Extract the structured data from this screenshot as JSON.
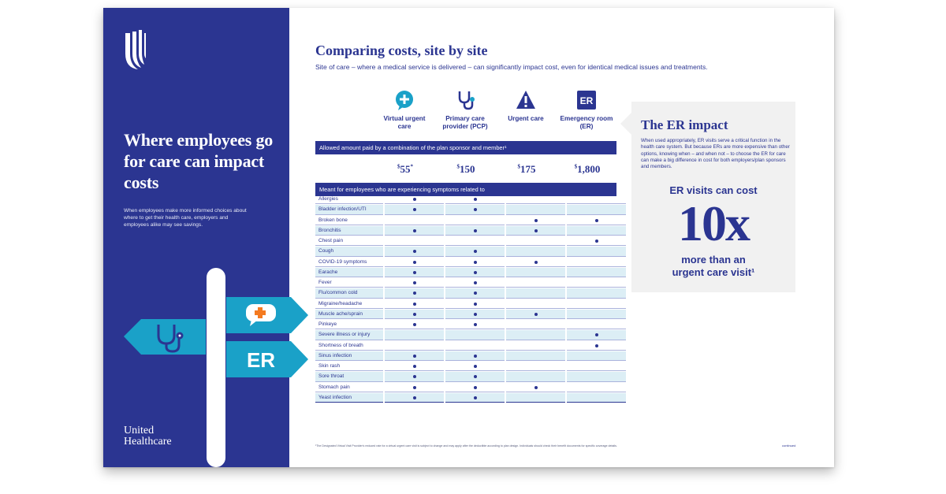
{
  "left": {
    "title": "Where employees go for care can impact costs",
    "body": "When employees make more informed choices about where to get their health care, employers and employees alike may see savings.",
    "brand_line1": "United",
    "brand_line2": "Healthcare",
    "sign_er_label": "ER"
  },
  "main": {
    "title": "Comparing costs, site by site",
    "subtitle": "Site of care – where a medical service is delivered – can significantly impact cost, even for identical medical issues and treatments.",
    "columns": [
      {
        "label": "Virtual urgent care",
        "icon": "virtual-care-icon"
      },
      {
        "label": "Primary care provider (PCP)",
        "icon": "stethoscope-icon"
      },
      {
        "label": "Urgent care",
        "icon": "warning-triangle-icon"
      },
      {
        "label": "Emergency room (ER)",
        "icon": "er-icon"
      }
    ],
    "er_icon_text": "ER",
    "allowed_band": "Allowed amount paid by a combination of the plan sponsor and member¹",
    "prices": [
      {
        "sup": "$",
        "amount": "55",
        "mark": "*"
      },
      {
        "sup": "$",
        "amount": "150",
        "mark": ""
      },
      {
        "sup": "$",
        "amount": "175",
        "mark": ""
      },
      {
        "sup": "$",
        "amount": "1,800",
        "mark": ""
      }
    ],
    "symptoms_band": "Meant for employees who are experiencing symptoms related to",
    "rows": [
      {
        "label": "Allergies",
        "marks": [
          true,
          true,
          false,
          false
        ]
      },
      {
        "label": "Bladder infection/UTI",
        "marks": [
          true,
          true,
          false,
          false
        ]
      },
      {
        "label": "Broken bone",
        "marks": [
          false,
          false,
          true,
          true
        ]
      },
      {
        "label": "Bronchitis",
        "marks": [
          true,
          true,
          true,
          false
        ]
      },
      {
        "label": "Chest pain",
        "marks": [
          false,
          false,
          false,
          true
        ]
      },
      {
        "label": "Cough",
        "marks": [
          true,
          true,
          false,
          false
        ]
      },
      {
        "label": "COVID-19 symptoms",
        "marks": [
          true,
          true,
          true,
          false
        ]
      },
      {
        "label": "Earache",
        "marks": [
          true,
          true,
          false,
          false
        ]
      },
      {
        "label": "Fever",
        "marks": [
          true,
          true,
          false,
          false
        ]
      },
      {
        "label": "Flu/common cold",
        "marks": [
          true,
          true,
          false,
          false
        ]
      },
      {
        "label": "Migraine/headache",
        "marks": [
          true,
          true,
          false,
          false
        ]
      },
      {
        "label": "Muscle ache/sprain",
        "marks": [
          true,
          true,
          true,
          false
        ]
      },
      {
        "label": "Pinkeye",
        "marks": [
          true,
          true,
          false,
          false
        ]
      },
      {
        "label": "Severe illness or injury",
        "marks": [
          false,
          false,
          false,
          true
        ]
      },
      {
        "label": "Shortness of breath",
        "marks": [
          false,
          false,
          false,
          true
        ]
      },
      {
        "label": "Sinus infection",
        "marks": [
          true,
          true,
          false,
          false
        ]
      },
      {
        "label": "Skin rash",
        "marks": [
          true,
          true,
          false,
          false
        ]
      },
      {
        "label": "Sore throat",
        "marks": [
          true,
          true,
          false,
          false
        ]
      },
      {
        "label": "Stomach pain",
        "marks": [
          true,
          true,
          true,
          false
        ]
      },
      {
        "label": "Yeast infection",
        "marks": [
          true,
          true,
          false,
          false
        ]
      }
    ],
    "footnote": "¹The Designated Virtual Visit Provider's reduced rate for a virtual urgent care visit is subject to change and may apply after the deductible according to plan design. Individuals should check their benefit documents for specific coverage details.",
    "continued": "continued"
  },
  "er_panel": {
    "title": "The ER impact",
    "body": "When used appropriately, ER visits serve a critical function in the health care system. But because ERs are more expensive than other options, knowing when – and when not – to choose the ER for care can make a big difference in cost for both employers/plan sponsors and members.",
    "stat_intro": "ER visits can cost",
    "stat_big": "10x",
    "stat_line1": "more than an",
    "stat_line2": "urgent care visit¹"
  },
  "colors": {
    "navy": "#2b3591",
    "cyan": "#1aa1c8",
    "light_row": "#dceef5",
    "orange": "#f47a20"
  }
}
